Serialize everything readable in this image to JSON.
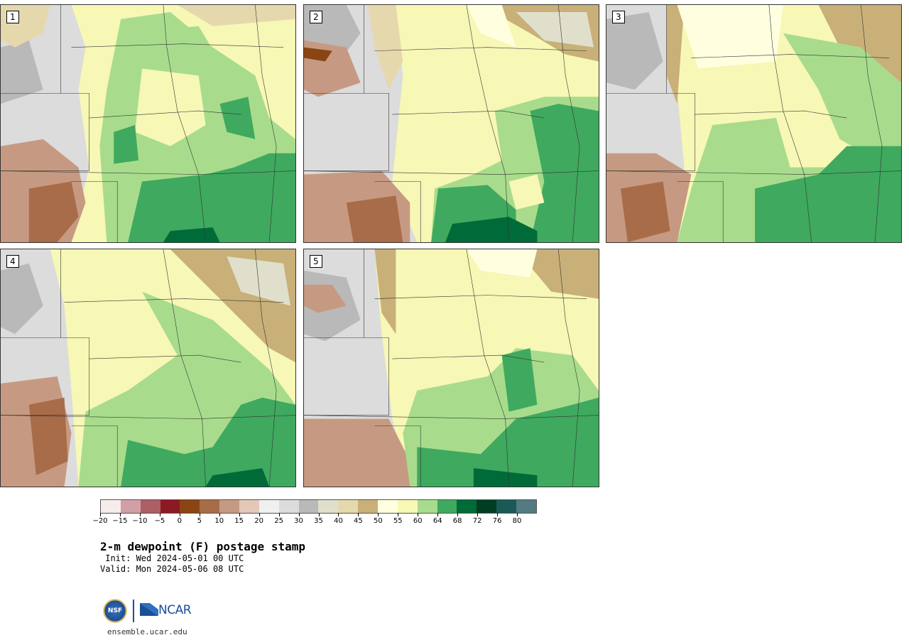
{
  "panels": [
    {
      "label": "1"
    },
    {
      "label": "2"
    },
    {
      "label": "3"
    },
    {
      "label": "4"
    },
    {
      "label": "5"
    }
  ],
  "colorbar": {
    "colors": [
      "#f7ecec",
      "#d29fa6",
      "#ad5f66",
      "#8c1a24",
      "#8a4512",
      "#a96c48",
      "#c69a82",
      "#e3c8b8",
      "#f0f0f0",
      "#dcdcdc",
      "#b9b9b9",
      "#e0dfcc",
      "#e6d8ad",
      "#c8b078",
      "#ffffe0",
      "#f7f7b6",
      "#a8dc8c",
      "#3fa95f",
      "#006b38",
      "#003d22",
      "#1a5a56",
      "#547a82"
    ],
    "tick_labels": [
      "−20",
      "−15",
      "−10",
      "−5",
      "0",
      "5",
      "10",
      "15",
      "20",
      "25",
      "30",
      "35",
      "40",
      "45",
      "50",
      "55",
      "60",
      "64",
      "68",
      "72",
      "76",
      "80"
    ]
  },
  "title": "2-m dewpoint (F) postage stamp",
  "init": " Init: Wed 2024-05-01 00 UTC",
  "valid": "Valid: Mon 2024-05-06 08 UTC",
  "logos": {
    "nsf_text": "NSF",
    "ncar_text": "NCAR"
  },
  "site": "ensemble.ucar.edu"
}
